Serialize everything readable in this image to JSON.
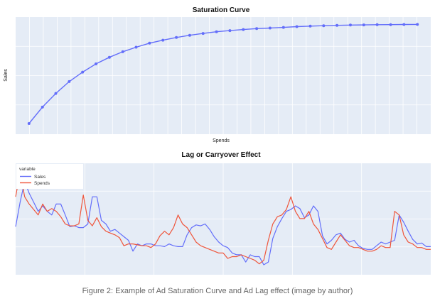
{
  "caption": "Figure 2: Example of Ad Saturation Curve and Ad Lag effect (image by author)",
  "colors": {
    "plot_bg": "#e5ecf6",
    "grid": "#ffffff",
    "saturation_line": "#636efa",
    "sales": "#636efa",
    "spends": "#ef553b"
  },
  "chart_data": [
    {
      "type": "line",
      "title": "Saturation Curve",
      "xlabel": "Spends",
      "ylabel": "Sales",
      "grid": true,
      "markers": true,
      "x": [
        1,
        2,
        3,
        4,
        5,
        6,
        7,
        8,
        9,
        10,
        11,
        12,
        13,
        14,
        15,
        16,
        17,
        18,
        19,
        20,
        21,
        22,
        23,
        24,
        25,
        26,
        27,
        28,
        29,
        30
      ],
      "series": [
        {
          "values": [
            0.1,
            0.254,
            0.383,
            0.494,
            0.583,
            0.66,
            0.722,
            0.774,
            0.817,
            0.855,
            0.883,
            0.908,
            0.929,
            0.946,
            0.962,
            0.973,
            0.983,
            0.991,
            0.997,
            1.003,
            1.01,
            1.015,
            1.019,
            1.022,
            1.025,
            1.026,
            1.028,
            1.029,
            1.03,
            1.031
          ]
        }
      ],
      "xlim": [
        0,
        31
      ],
      "ylim": [
        0,
        1.1
      ]
    },
    {
      "type": "line",
      "title": "Lag or Carryover Effect",
      "legend_title": "variable",
      "legend_position": "top-left",
      "grid": true,
      "x": [
        1,
        2,
        3,
        4,
        5,
        6,
        7,
        8,
        9,
        10,
        11,
        12,
        13,
        14,
        15,
        16,
        17,
        18,
        19,
        20,
        21,
        22,
        23,
        24,
        25,
        26,
        27,
        28,
        29,
        30,
        31,
        32,
        33,
        34,
        35,
        36,
        37,
        38,
        39,
        40,
        41,
        42,
        43,
        44,
        45,
        46,
        47,
        48,
        49,
        50,
        51,
        52,
        53,
        54,
        55,
        56,
        57,
        58,
        59,
        60,
        61,
        62,
        63,
        64,
        65,
        66,
        67,
        68,
        69,
        70,
        71,
        72,
        73,
        74,
        75,
        76,
        77,
        78,
        79,
        80,
        81,
        82,
        83,
        84,
        85,
        86,
        87,
        88,
        89,
        90,
        91,
        92,
        93
      ],
      "series": [
        {
          "name": "Sales",
          "values": [
            0.45,
            0.72,
            0.95,
            0.82,
            0.72,
            0.62,
            0.68,
            0.62,
            0.58,
            0.7,
            0.7,
            0.58,
            0.45,
            0.46,
            0.44,
            0.44,
            0.48,
            0.78,
            0.78,
            0.52,
            0.48,
            0.4,
            0.42,
            0.38,
            0.34,
            0.3,
            0.18,
            0.26,
            0.24,
            0.26,
            0.26,
            0.24,
            0.24,
            0.23,
            0.26,
            0.24,
            0.23,
            0.23,
            0.36,
            0.44,
            0.47,
            0.46,
            0.48,
            0.42,
            0.34,
            0.28,
            0.24,
            0.22,
            0.16,
            0.14,
            0.14,
            0.06,
            0.14,
            0.12,
            0.12,
            0.03,
            0.06,
            0.32,
            0.45,
            0.54,
            0.62,
            0.64,
            0.68,
            0.65,
            0.55,
            0.58,
            0.68,
            0.62,
            0.35,
            0.26,
            0.3,
            0.36,
            0.38,
            0.31,
            0.28,
            0.3,
            0.24,
            0.21,
            0.2,
            0.2,
            0.24,
            0.28,
            0.26,
            0.28,
            0.3,
            0.58,
            0.5,
            0.4,
            0.31,
            0.26,
            0.27,
            0.23,
            0.23
          ]
        },
        {
          "name": "Spends",
          "values": [
            0.78,
            1.05,
            0.78,
            0.7,
            0.64,
            0.58,
            0.7,
            0.62,
            0.65,
            0.62,
            0.56,
            0.48,
            0.46,
            0.46,
            0.48,
            0.8,
            0.52,
            0.46,
            0.55,
            0.45,
            0.4,
            0.38,
            0.36,
            0.33,
            0.24,
            0.26,
            0.26,
            0.25,
            0.24,
            0.24,
            0.22,
            0.26,
            0.35,
            0.4,
            0.36,
            0.44,
            0.58,
            0.48,
            0.44,
            0.36,
            0.28,
            0.24,
            0.22,
            0.2,
            0.18,
            0.16,
            0.16,
            0.1,
            0.12,
            0.12,
            0.14,
            0.12,
            0.1,
            0.08,
            0.04,
            0.08,
            0.3,
            0.48,
            0.56,
            0.58,
            0.64,
            0.78,
            0.62,
            0.54,
            0.54,
            0.62,
            0.48,
            0.42,
            0.32,
            0.22,
            0.2,
            0.28,
            0.36,
            0.3,
            0.24,
            0.22,
            0.22,
            0.2,
            0.18,
            0.18,
            0.2,
            0.24,
            0.22,
            0.22,
            0.62,
            0.58,
            0.36,
            0.28,
            0.26,
            0.22,
            0.22,
            0.2,
            0.2
          ]
        }
      ],
      "xlim": [
        1,
        93
      ],
      "ylim": [
        -0.08,
        1.15
      ]
    }
  ]
}
